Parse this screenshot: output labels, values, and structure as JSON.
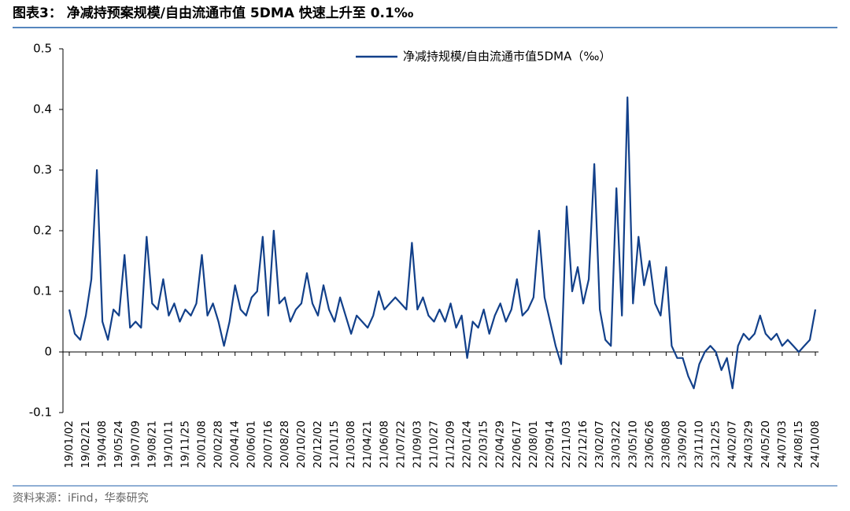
{
  "header": {
    "title": "图表3：  净减持预案规模/自由流通市值 5DMA 快速上升至 0.1‰"
  },
  "chart_data": {
    "type": "line",
    "categories": [
      "19/01/02",
      null,
      null,
      "19/02/21",
      null,
      null,
      "19/04/08",
      null,
      null,
      "19/05/24",
      null,
      null,
      "19/07/09",
      null,
      null,
      "19/08/21",
      null,
      null,
      "19/10/11",
      null,
      null,
      "19/11/25",
      null,
      null,
      "20/01/08",
      null,
      null,
      "20/02/28",
      null,
      null,
      "20/04/14",
      null,
      null,
      "20/06/01",
      null,
      null,
      "20/07/16",
      null,
      null,
      "20/08/28",
      null,
      null,
      "20/10/20",
      null,
      null,
      "20/12/02",
      null,
      null,
      "21/01/15",
      null,
      null,
      "21/03/08",
      null,
      null,
      "21/04/21",
      null,
      null,
      "21/06/08",
      null,
      null,
      "21/07/22",
      null,
      null,
      "21/09/03",
      null,
      null,
      "21/10/27",
      null,
      null,
      "21/12/09",
      null,
      null,
      "22/01/24",
      null,
      null,
      "22/03/15",
      null,
      null,
      "22/04/29",
      null,
      null,
      "22/06/17",
      null,
      null,
      "22/08/01",
      null,
      null,
      "22/09/14",
      null,
      null,
      "22/11/03",
      null,
      null,
      "22/12/16",
      null,
      null,
      "23/02/07",
      null,
      null,
      "23/03/22",
      null,
      null,
      "23/05/10",
      null,
      null,
      "23/06/26",
      null,
      null,
      "23/08/08",
      null,
      null,
      "23/09/20",
      null,
      null,
      "23/11/10",
      null,
      null,
      "23/12/25",
      null,
      null,
      "24/02/07",
      null,
      null,
      "24/03/29",
      null,
      null,
      "24/05/20",
      null,
      null,
      "24/07/03",
      null,
      null,
      "24/08/15",
      null,
      null,
      "24/10/08"
    ],
    "series": [
      {
        "name": "净减持规模/自由流通市值5DMA（‰）",
        "color": "#12408a",
        "values": [
          0.07,
          0.03,
          0.02,
          0.06,
          0.12,
          0.3,
          0.05,
          0.02,
          0.07,
          0.06,
          0.16,
          0.04,
          0.05,
          0.04,
          0.19,
          0.08,
          0.07,
          0.12,
          0.06,
          0.08,
          0.05,
          0.07,
          0.06,
          0.08,
          0.16,
          0.06,
          0.08,
          0.05,
          0.01,
          0.05,
          0.11,
          0.07,
          0.06,
          0.09,
          0.1,
          0.19,
          0.06,
          0.2,
          0.08,
          0.09,
          0.05,
          0.07,
          0.08,
          0.13,
          0.08,
          0.06,
          0.11,
          0.07,
          0.05,
          0.09,
          0.06,
          0.03,
          0.06,
          0.05,
          0.04,
          0.06,
          0.1,
          0.07,
          0.08,
          0.09,
          0.08,
          0.07,
          0.18,
          0.07,
          0.09,
          0.06,
          0.05,
          0.07,
          0.05,
          0.08,
          0.04,
          0.06,
          -0.01,
          0.05,
          0.04,
          0.07,
          0.03,
          0.06,
          0.08,
          0.05,
          0.07,
          0.12,
          0.06,
          0.07,
          0.09,
          0.2,
          0.09,
          0.05,
          0.01,
          -0.02,
          0.24,
          0.1,
          0.14,
          0.08,
          0.12,
          0.31,
          0.07,
          0.02,
          0.01,
          0.27,
          0.06,
          0.42,
          0.08,
          0.19,
          0.11,
          0.15,
          0.08,
          0.06,
          0.14,
          0.01,
          -0.01,
          -0.01,
          -0.04,
          -0.06,
          -0.02,
          0.0,
          0.01,
          0.0,
          -0.03,
          -0.01,
          -0.06,
          0.01,
          0.03,
          0.02,
          0.03,
          0.06,
          0.03,
          0.02,
          0.03,
          0.01,
          0.02,
          0.01,
          0.0,
          0.01,
          0.02,
          0.07
        ]
      }
    ],
    "ylim": [
      -0.1,
      0.5
    ],
    "yticks": [
      -0.1,
      0,
      0.1,
      0.2,
      0.3,
      0.4,
      0.5
    ],
    "legend": "top-right"
  },
  "footer": {
    "source": "资料来源：iFind，华泰研究"
  }
}
